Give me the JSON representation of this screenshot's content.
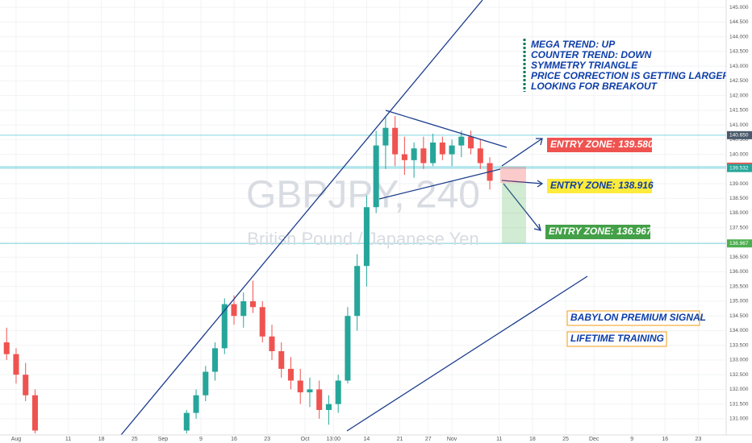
{
  "chart_data": {
    "type": "candlestick",
    "watermark": "GBPJPY, 240",
    "watermark_subtitle": "British Pound / Japanese Yen",
    "x": [
      -2,
      0,
      2,
      4,
      36,
      38,
      40,
      42,
      44,
      46,
      48,
      50,
      52,
      54,
      56,
      58,
      60,
      62,
      64,
      66,
      68,
      70,
      72,
      74,
      76,
      78,
      80,
      82,
      84,
      86,
      88,
      90,
      92,
      94,
      96,
      98,
      100
    ],
    "open": [
      133.6,
      133.2,
      132.5,
      131.8,
      130.6,
      131.2,
      131.8,
      132.6,
      133.4,
      134.9,
      134.5,
      135.0,
      134.8,
      133.8,
      133.3,
      132.7,
      132.3,
      131.9,
      132.0,
      131.3,
      131.5,
      132.3,
      134.5,
      136.2,
      138.2,
      140.3,
      140.9,
      140.0,
      139.8,
      140.2,
      139.7,
      140.4,
      140.0,
      140.3,
      140.6,
      140.2,
      139.7
    ],
    "high": [
      134.1,
      133.4,
      132.9,
      132.0,
      131.3,
      132.0,
      132.8,
      133.6,
      135.1,
      135.2,
      135.3,
      135.7,
      135.0,
      134.2,
      133.6,
      133.1,
      132.7,
      132.4,
      132.3,
      131.8,
      132.5,
      134.8,
      136.6,
      138.6,
      140.8,
      141.3,
      141.3,
      140.6,
      140.4,
      140.6,
      140.7,
      140.6,
      140.5,
      140.8,
      140.8,
      140.5,
      139.9
    ],
    "low": [
      133.0,
      132.2,
      131.6,
      130.5,
      130.5,
      131.0,
      131.6,
      132.3,
      133.2,
      134.2,
      134.1,
      134.6,
      133.6,
      133.0,
      132.4,
      132.0,
      131.5,
      131.4,
      131.0,
      130.8,
      131.2,
      132.2,
      134.0,
      135.5,
      138.0,
      139.5,
      139.6,
      139.3,
      139.2,
      139.5,
      139.6,
      139.8,
      139.6,
      139.9,
      140.0,
      139.5,
      138.8
    ],
    "close": [
      133.2,
      132.5,
      131.8,
      130.6,
      131.2,
      131.8,
      132.6,
      133.4,
      134.9,
      134.5,
      135.0,
      134.8,
      133.8,
      133.3,
      132.7,
      132.3,
      131.9,
      132.0,
      131.3,
      131.5,
      132.3,
      134.5,
      136.2,
      138.2,
      140.3,
      140.9,
      140.0,
      139.8,
      140.2,
      139.7,
      140.4,
      140.0,
      140.3,
      140.6,
      140.2,
      139.7,
      139.1
    ],
    "up_color": "#26a69a",
    "down_color": "#ef5350",
    "xlim": [
      -3.4,
      149.9
    ],
    "xticks": [
      {
        "value": 0,
        "label": "Aug"
      },
      11,
      18,
      25,
      {
        "value": 31,
        "label": "Sep"
      },
      {
        "value": 39,
        "label": "9"
      },
      {
        "value": 46,
        "label": "16"
      },
      {
        "value": 53,
        "label": "23"
      },
      {
        "value": 61,
        "label": "Oct"
      },
      {
        "value": 67,
        "label": "13:00"
      },
      {
        "value": 74,
        "label": "14"
      },
      {
        "value": 81,
        "label": "21"
      },
      {
        "value": 87,
        "label": "27"
      },
      {
        "value": 92,
        "label": "Nov"
      },
      {
        "value": 102,
        "label": "11"
      },
      {
        "value": 109,
        "label": "18"
      },
      {
        "value": 116,
        "label": "25"
      },
      {
        "value": 122,
        "label": "Dec"
      },
      {
        "value": 130,
        "label": "9"
      },
      {
        "value": 137,
        "label": "16"
      },
      {
        "value": 144,
        "label": "23"
      }
    ],
    "ylim": [
      130.45,
      145.25
    ],
    "yticks": [
      {
        "value": 131,
        "label": "131.000"
      },
      {
        "value": 131.5,
        "label": "131.500"
      },
      {
        "value": 132,
        "label": "132.000"
      },
      {
        "value": 132.5,
        "label": "132.500"
      },
      {
        "value": 133,
        "label": "133.000"
      },
      {
        "value": 133.5,
        "label": "133.500"
      },
      {
        "value": 134,
        "label": "134.000"
      },
      {
        "value": 134.5,
        "label": "134.500"
      },
      {
        "value": 135,
        "label": "135.000"
      },
      {
        "value": 135.5,
        "label": "135.500"
      },
      {
        "value": 136,
        "label": "136.000"
      },
      {
        "value": 136.5,
        "label": "136.500"
      },
      {
        "value": 137,
        "label": "137.000"
      },
      {
        "value": 137.5,
        "label": "137.500"
      },
      {
        "value": 138,
        "label": "138.000"
      },
      {
        "value": 138.5,
        "label": "138.500"
      },
      {
        "value": 139,
        "label": "139.000"
      },
      {
        "value": 139.5,
        "label": "139.500"
      },
      {
        "value": 140,
        "label": "140.000"
      },
      {
        "value": 140.5,
        "label": "140.500"
      },
      {
        "value": 141,
        "label": "141.000"
      },
      {
        "value": 141.5,
        "label": "141.500"
      },
      {
        "value": 142,
        "label": "142.000"
      },
      {
        "value": 142.5,
        "label": "142.500"
      },
      {
        "value": 143,
        "label": "143.000"
      },
      {
        "value": 143.5,
        "label": "143.500"
      },
      {
        "value": 144,
        "label": "144.000"
      },
      {
        "value": 144.5,
        "label": "144.500"
      },
      {
        "value": 145,
        "label": "145.000"
      }
    ],
    "price_badges": [
      {
        "value": 140.65,
        "label": "140.650",
        "color": "#4a5a6a"
      },
      {
        "value": 139.58,
        "label": "139.580",
        "color": "#ef5350"
      },
      {
        "value": 139.532,
        "label": "139.532",
        "color": "#26a69a"
      },
      {
        "value": 136.967,
        "label": "136.967",
        "color": "#4caf50"
      }
    ],
    "notes": [
      "MEGA TREND: UP",
      "COUNTER TREND: DOWN",
      "SYMMETRY TRIANGLE",
      "PRICE CORRECTION IS GETTING LARGER",
      "LOOKING FOR BREAKOUT"
    ],
    "entry_zones": [
      "ENTRY ZONE: 139.580",
      "ENTRY ZONE: 138.916",
      "ENTRY ZONE: 136.967"
    ],
    "promo": [
      "BABYLON PREMIUM SIGNAL",
      "LIFETIME TRAINING"
    ]
  }
}
